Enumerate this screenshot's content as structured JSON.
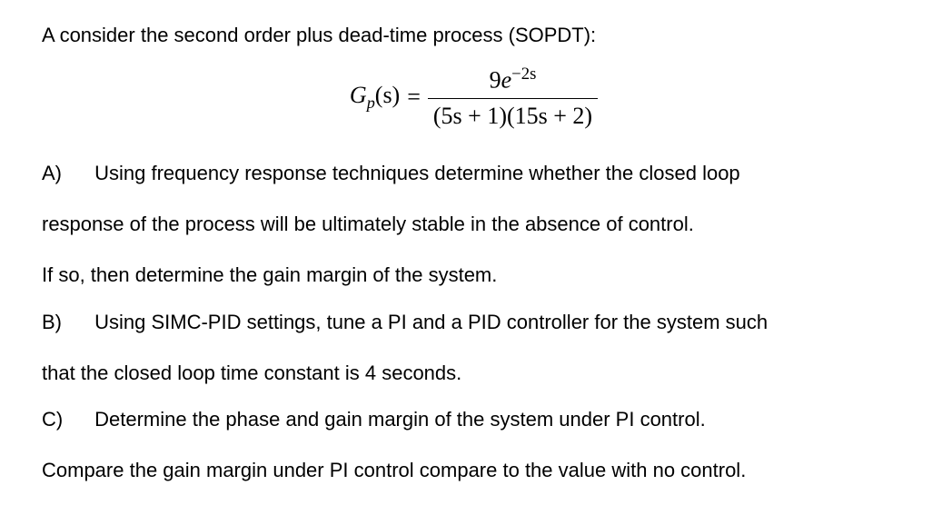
{
  "intro": "A consider the second order plus dead-time process (SOPDT):",
  "equation": {
    "lhs_symbol": "G",
    "lhs_sub": "p",
    "lhs_arg": "(s)",
    "equals": "=",
    "num_coeff": "9",
    "num_e": "e",
    "num_exp": "−2s",
    "den": "(5s + 1)(15s + 2)"
  },
  "partA": {
    "label": "A)",
    "line1_rest": "Using frequency response techniques determine whether the closed loop",
    "line2": "response of the process will be ultimately stable in the absence of control.",
    "line3": "If so, then determine the gain margin of the system."
  },
  "partB": {
    "label": "B)",
    "line1_rest": "Using SIMC-PID settings, tune a PI and a PID controller for the system such",
    "line2": "that the closed loop time constant is 4 seconds."
  },
  "partC": {
    "label": "C)",
    "line1_rest": "Determine the phase and gain margin of the system under PI control.",
    "line2": "Compare the gain margin under PI control compare to the value with no control."
  }
}
